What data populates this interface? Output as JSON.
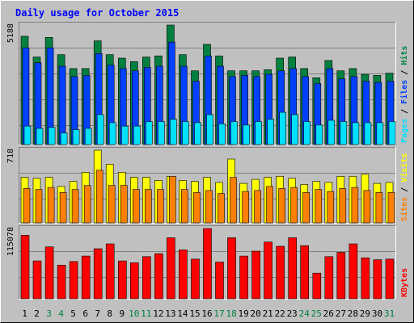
{
  "title": "Daily usage for October 2015",
  "colors": {
    "background": "#C0C0C0",
    "title": "#0000FF",
    "hits": "#008040",
    "files": "#0040FF",
    "pages": "#00E0FF",
    "visits": "#FFFF00",
    "sites": "#FF8000",
    "kbytes": "#FF0000",
    "weekend_label": "#008040",
    "weekday_label": "#000000"
  },
  "chart_data": [
    {
      "type": "bar",
      "panel": "hits-files-pages",
      "ymax_label": "5188",
      "ylim": [
        0,
        5188
      ],
      "right_label": [
        {
          "text": "Pages",
          "color": "#00E0FF"
        },
        {
          "text": " / ",
          "color": "#000000"
        },
        {
          "text": "Files",
          "color": "#0040FF"
        },
        {
          "text": " / ",
          "color": "#000000"
        },
        {
          "text": "Hits",
          "color": "#008040"
        }
      ],
      "categories": [
        "1",
        "2",
        "3",
        "4",
        "5",
        "6",
        "7",
        "8",
        "9",
        "10",
        "11",
        "12",
        "13",
        "14",
        "15",
        "16",
        "17",
        "18",
        "19",
        "20",
        "21",
        "22",
        "23",
        "24",
        "25",
        "26",
        "27",
        "28",
        "29",
        "30",
        "31"
      ],
      "series": [
        {
          "name": "Hits",
          "values": [
            4700,
            3800,
            4650,
            3900,
            3300,
            3300,
            4500,
            3900,
            3750,
            3600,
            3800,
            3850,
            5188,
            3900,
            3200,
            4350,
            3850,
            3200,
            3200,
            3200,
            3250,
            3750,
            3800,
            3300,
            2900,
            3650,
            3200,
            3300,
            3050,
            3000,
            3100
          ]
        },
        {
          "name": "Files",
          "values": [
            4200,
            3550,
            4200,
            3400,
            2950,
            3000,
            3950,
            3450,
            3300,
            3200,
            3350,
            3400,
            4450,
            3400,
            2750,
            3850,
            3400,
            2950,
            3000,
            2950,
            3050,
            3200,
            3300,
            2950,
            2650,
            3300,
            2850,
            2950,
            2750,
            2700,
            2750
          ]
        },
        {
          "name": "Pages",
          "values": [
            800,
            700,
            750,
            500,
            650,
            700,
            1300,
            950,
            800,
            800,
            1000,
            1000,
            1100,
            1000,
            950,
            1300,
            900,
            1000,
            850,
            1000,
            1100,
            1400,
            1300,
            1000,
            850,
            1050,
            1000,
            950,
            950,
            950,
            1000
          ]
        }
      ]
    },
    {
      "type": "bar",
      "panel": "visits-sites",
      "ymax_label": "718",
      "ylim": [
        0,
        718
      ],
      "right_label": [
        {
          "text": "Sites",
          "color": "#FF8000"
        },
        {
          "text": " / ",
          "color": "#000000"
        },
        {
          "text": "Visits",
          "color": "#FFFF00"
        }
      ],
      "categories": [
        "1",
        "2",
        "3",
        "4",
        "5",
        "6",
        "7",
        "8",
        "9",
        "10",
        "11",
        "12",
        "13",
        "14",
        "15",
        "16",
        "17",
        "18",
        "19",
        "20",
        "21",
        "22",
        "23",
        "24",
        "25",
        "26",
        "27",
        "28",
        "29",
        "30",
        "31"
      ],
      "series": [
        {
          "name": "Visits",
          "values": [
            450,
            440,
            450,
            360,
            410,
            500,
            718,
            580,
            500,
            450,
            450,
            420,
            460,
            420,
            410,
            450,
            400,
            630,
            390,
            430,
            450,
            460,
            440,
            380,
            410,
            400,
            460,
            460,
            480,
            390,
            400
          ]
        },
        {
          "name": "Sites",
          "values": [
            340,
            330,
            350,
            300,
            330,
            370,
            520,
            370,
            370,
            330,
            330,
            330,
            460,
            330,
            300,
            320,
            290,
            450,
            310,
            320,
            360,
            340,
            350,
            300,
            330,
            310,
            340,
            350,
            320,
            300,
            300
          ]
        }
      ]
    },
    {
      "type": "bar",
      "panel": "kbytes",
      "ymax_label": "115078",
      "ylim": [
        0,
        115078
      ],
      "right_label": [
        {
          "text": "KBytes",
          "color": "#FF0000"
        }
      ],
      "categories": [
        "1",
        "2",
        "3",
        "4",
        "5",
        "6",
        "7",
        "8",
        "9",
        "10",
        "11",
        "12",
        "13",
        "14",
        "15",
        "16",
        "17",
        "18",
        "19",
        "20",
        "21",
        "22",
        "23",
        "24",
        "25",
        "26",
        "27",
        "28",
        "29",
        "30",
        "31"
      ],
      "series": [
        {
          "name": "KBytes",
          "values": [
            104000,
            62000,
            85000,
            55000,
            61000,
            70000,
            82000,
            90000,
            62000,
            59000,
            69000,
            74000,
            100000,
            80000,
            65000,
            115078,
            60000,
            100000,
            70000,
            78000,
            93000,
            86000,
            100000,
            87000,
            42000,
            69000,
            76000,
            90000,
            67000,
            64000,
            65000
          ]
        }
      ]
    }
  ],
  "x_axis": {
    "labels": [
      "1",
      "2",
      "3",
      "4",
      "5",
      "6",
      "7",
      "8",
      "9",
      "10",
      "11",
      "12",
      "13",
      "14",
      "15",
      "16",
      "17",
      "18",
      "19",
      "20",
      "21",
      "22",
      "23",
      "24",
      "25",
      "26",
      "27",
      "28",
      "29",
      "30",
      "31"
    ],
    "weekend_days": [
      "3",
      "4",
      "10",
      "11",
      "17",
      "18",
      "24",
      "25",
      "31"
    ]
  }
}
